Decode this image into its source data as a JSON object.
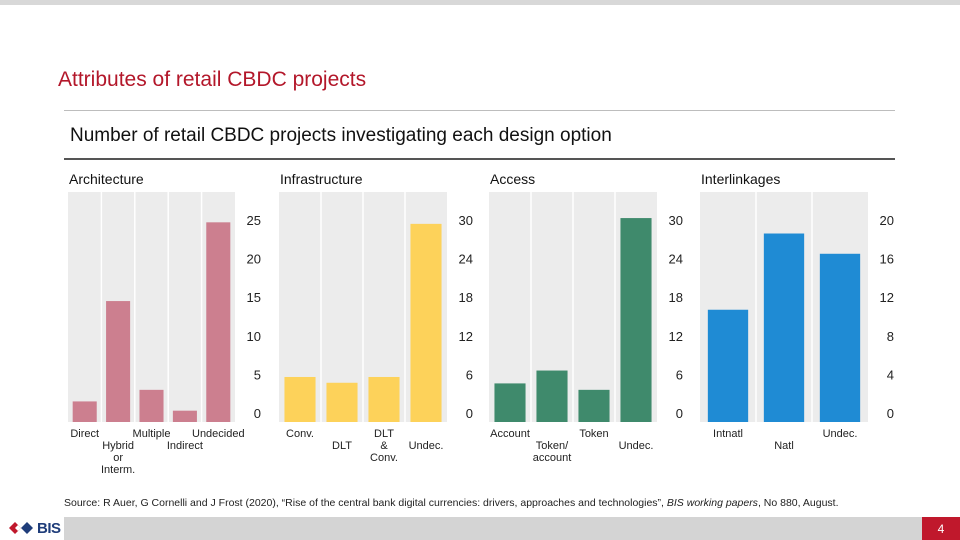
{
  "slide": {
    "title": "Attributes of retail CBDC projects",
    "page_number": "4",
    "logo_text": "BIS",
    "source_parts": {
      "prefix": "Source: R Auer, G Cornelli and J Frost (2020), “Rise of the central bank digital currencies: drivers, approaches and  technologies”, ",
      "italic": "BIS working papers",
      "suffix": ", No 880, August."
    }
  },
  "colors": {
    "title_red": "#b3172a",
    "panel_bg": "#ececec",
    "architecture": "#cc7f8f",
    "infrastructure": "#fdd25a",
    "access": "#3f8a6c",
    "interlinkages": "#1f8bd4"
  },
  "chart_data": {
    "title": "Number of retail CBDC projects investigating each design option",
    "panels": [
      {
        "type": "bar",
        "title": "Architecture",
        "color": "#cc7f8f",
        "categories": [
          [
            "Direct"
          ],
          [
            "Hybrid",
            "or",
            "Interm."
          ],
          [
            "Multiple"
          ],
          [
            "Indirect"
          ],
          [
            "Undecided"
          ]
        ],
        "values": [
          1.5,
          14.5,
          3.0,
          0.3,
          24.7
        ],
        "ylim": [
          0,
          25
        ],
        "yticks": [
          0,
          5,
          10,
          15,
          20,
          25
        ]
      },
      {
        "type": "bar",
        "title": "Infrastructure",
        "color": "#fdd25a",
        "categories": [
          [
            "Conv."
          ],
          [
            "DLT"
          ],
          [
            "DLT",
            "&",
            "Conv."
          ],
          [
            "Undec."
          ]
        ],
        "values": [
          5.6,
          4.7,
          5.6,
          29.4
        ],
        "ylim": [
          0,
          30
        ],
        "yticks": [
          0,
          6,
          12,
          18,
          24,
          30
        ]
      },
      {
        "type": "bar",
        "title": "Access",
        "color": "#3f8a6c",
        "categories": [
          [
            "Account"
          ],
          [
            "Token/",
            "account"
          ],
          [
            "Token"
          ],
          [
            "Undec."
          ]
        ],
        "values": [
          4.6,
          6.6,
          3.6,
          30.3
        ],
        "ylim": [
          0,
          30
        ],
        "yticks": [
          0,
          6,
          12,
          18,
          24,
          30
        ]
      },
      {
        "type": "bar",
        "title": "Interlinkages",
        "color": "#1f8bd4",
        "categories": [
          [
            "Intnatl"
          ],
          [
            "Natl"
          ],
          [
            "Undec."
          ]
        ],
        "values": [
          10.7,
          18.6,
          16.5
        ],
        "ylim": [
          0,
          20
        ],
        "yticks": [
          0,
          4,
          8,
          12,
          16,
          20
        ]
      }
    ]
  }
}
